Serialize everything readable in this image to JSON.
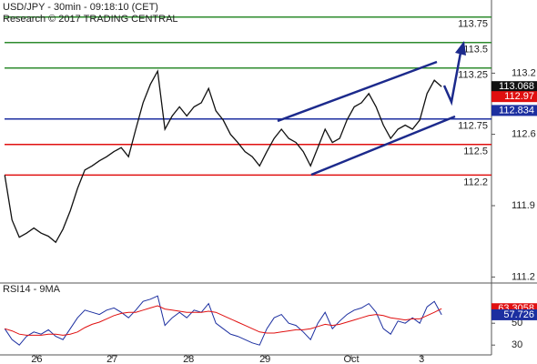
{
  "chart_data": [
    {
      "type": "line",
      "title": "USD/JPY - 30min - 09:18:10 (CET)",
      "subtitle": "Research © 2017 TRADING CENTRAL",
      "x": [
        0,
        1,
        2,
        3,
        4,
        5,
        6,
        7,
        8,
        9,
        10,
        11,
        12,
        13,
        14,
        15,
        16,
        17,
        18,
        19,
        20,
        21,
        22,
        23,
        24,
        25,
        26,
        27,
        28,
        29,
        30,
        31,
        32,
        33,
        34,
        35,
        36,
        37,
        38,
        39,
        40,
        41,
        42,
        43,
        44,
        45,
        46,
        47,
        48,
        49,
        50,
        51,
        52,
        53,
        54,
        55,
        56,
        57,
        58,
        59,
        60
      ],
      "values": [
        112.2,
        111.76,
        111.59,
        111.63,
        111.68,
        111.63,
        111.6,
        111.54,
        111.67,
        111.85,
        112.07,
        112.25,
        112.29,
        112.34,
        112.38,
        112.43,
        112.47,
        112.38,
        112.65,
        112.91,
        113.09,
        113.22,
        112.65,
        112.78,
        112.87,
        112.78,
        112.87,
        112.91,
        113.05,
        112.83,
        112.74,
        112.6,
        112.52,
        112.43,
        112.38,
        112.29,
        112.43,
        112.56,
        112.65,
        112.56,
        112.52,
        112.43,
        112.29,
        112.47,
        112.65,
        112.52,
        112.56,
        112.74,
        112.87,
        112.91,
        113.0,
        112.87,
        112.69,
        112.56,
        112.65,
        112.69,
        112.65,
        112.74,
        113.0,
        113.13,
        113.068
      ],
      "color": "#111111",
      "xlim": [
        -0.4,
        66.85
      ],
      "ylim": [
        111.15,
        113.9
      ],
      "yticks": [
        111.2,
        111.9,
        112.6,
        113.2
      ],
      "levels": [
        {
          "value": 113.75,
          "color": "#2e8b2e"
        },
        {
          "value": 113.5,
          "color": "#2e8b2e"
        },
        {
          "value": 113.25,
          "color": "#2e8b2e"
        },
        {
          "value": 112.75,
          "color": "#1c2fa0"
        },
        {
          "value": 112.5,
          "color": "#e01010"
        },
        {
          "value": 112.2,
          "color": "#e01010"
        }
      ],
      "price_tags": [
        {
          "value": 113.068,
          "color": "#111111"
        },
        {
          "value": 112.97,
          "color": "#e01010"
        },
        {
          "value": 112.834,
          "color": "#1c2fa0"
        }
      ]
    },
    {
      "type": "line",
      "title": "RSI14 - 9MA",
      "x": [
        0,
        1,
        2,
        3,
        4,
        5,
        6,
        7,
        8,
        9,
        10,
        11,
        12,
        13,
        14,
        15,
        16,
        17,
        18,
        19,
        20,
        21,
        22,
        23,
        24,
        25,
        26,
        27,
        28,
        29,
        30,
        31,
        32,
        33,
        34,
        35,
        36,
        37,
        38,
        39,
        40,
        41,
        42,
        43,
        44,
        45,
        46,
        47,
        48,
        49,
        50,
        51,
        52,
        53,
        54,
        55,
        56,
        57,
        58,
        59,
        60
      ],
      "series": [
        {
          "color": "#1c2fa0",
          "values": [
            45,
            35,
            30,
            38,
            42,
            40,
            44,
            38,
            35,
            45,
            55,
            62,
            60,
            58,
            62,
            64,
            60,
            55,
            62,
            70,
            72,
            75,
            48,
            55,
            60,
            55,
            62,
            60,
            68,
            50,
            45,
            40,
            38,
            35,
            32,
            30,
            45,
            55,
            58,
            50,
            48,
            42,
            35,
            50,
            60,
            45,
            52,
            58,
            62,
            64,
            68,
            60,
            45,
            40,
            52,
            50,
            55,
            50,
            65,
            70,
            57.726
          ]
        },
        {
          "color": "#e01010",
          "values": [
            45,
            43,
            40,
            39,
            39,
            39,
            40,
            40,
            39,
            40,
            42,
            46,
            49,
            51,
            54,
            57,
            59,
            60,
            60,
            62,
            64,
            66,
            63,
            62,
            61,
            60,
            60,
            60,
            61,
            60,
            57,
            54,
            51,
            48,
            45,
            42,
            41,
            41,
            42,
            43,
            44,
            44,
            45,
            47,
            49,
            48,
            49,
            51,
            53,
            55,
            57,
            58,
            57,
            55,
            54,
            53,
            54,
            54,
            57,
            60,
            63.3058
          ]
        }
      ],
      "xlim": [
        -0.4,
        66.85
      ],
      "xticks": [
        {
          "value": 4.4,
          "label": "26"
        },
        {
          "value": 14.75,
          "label": "27"
        },
        {
          "value": 25.25,
          "label": "28"
        },
        {
          "value": 35.75,
          "label": "29"
        },
        {
          "value": 47.6,
          "label": "Oct"
        },
        {
          "value": 57.25,
          "label": "3"
        }
      ],
      "ylim": [
        21,
        86
      ],
      "yticks": [
        30,
        50
      ],
      "price_tags": [
        {
          "value": 63.3058,
          "color": "#e01010"
        },
        {
          "value": 57.726,
          "color": "#1c2fa0"
        }
      ]
    }
  ]
}
